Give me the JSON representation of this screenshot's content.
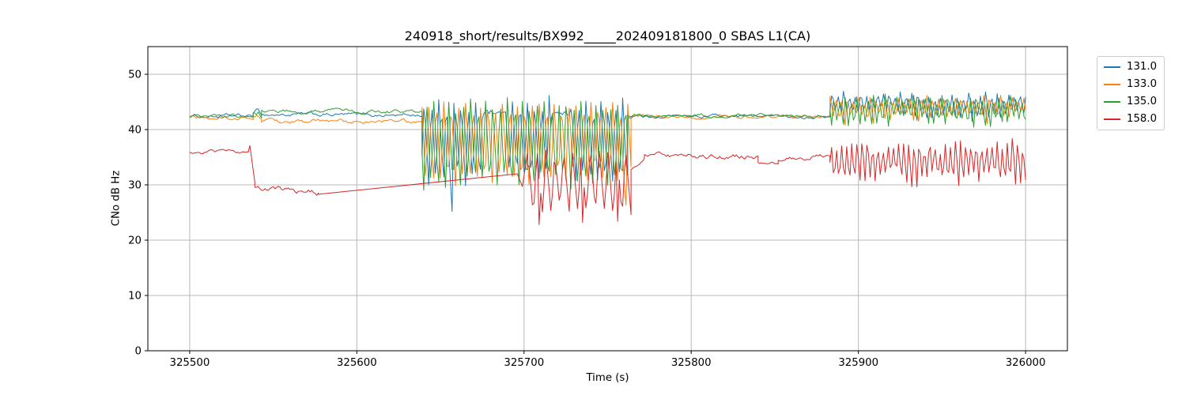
{
  "chart_data": {
    "type": "line",
    "title": "240918_short/results/BX992_____202409181800_0 SBAS L1(CA)",
    "xlabel": "Time (s)",
    "ylabel": "CNo dB Hz",
    "xlim": [
      325475,
      326025
    ],
    "ylim": [
      0,
      55
    ],
    "x_ticks": [
      325500,
      325600,
      325700,
      325800,
      325900,
      326000
    ],
    "y_ticks": [
      0,
      10,
      20,
      30,
      40,
      50
    ],
    "grid": true,
    "grid_color": "#b8b8b8",
    "spine_color": "#000000",
    "legend_position": "outside-upper-right",
    "series": [
      {
        "name": "131.0",
        "color": "#1f77b4",
        "segments": [
          {
            "type": "noise",
            "t0": 325500,
            "t1": 325538,
            "v0": 42.4,
            "v1": 42.4,
            "amp": 0.55
          },
          {
            "type": "noise",
            "t0": 325538,
            "t1": 325543,
            "v0": 42.8,
            "v1": 42.8,
            "amp": 1.1
          },
          {
            "type": "noise",
            "t0": 325543,
            "t1": 325639,
            "v0": 42.7,
            "v1": 42.6,
            "amp": 0.55
          },
          {
            "type": "saw",
            "t0": 325639,
            "t1": 325762,
            "hi": 45.6,
            "lo": 30.2,
            "period": 4.4,
            "phase": 0.1,
            "noise": 0.7,
            "holds": [
              [
                325676,
                325689,
                43.2
              ],
              [
                325717,
                325727,
                43.0
              ]
            ],
            "dips": [
              [
                325657,
                25.2
              ]
            ]
          },
          {
            "type": "noise",
            "t0": 325762,
            "t1": 325883,
            "v0": 42.4,
            "v1": 42.4,
            "amp": 0.45
          },
          {
            "type": "saw",
            "t0": 325883,
            "t1": 326000,
            "hi": 46.6,
            "lo": 42.6,
            "period": 3.4,
            "phase": 0.0,
            "noise": 0.5
          }
        ]
      },
      {
        "name": "133.0",
        "color": "#ff7f0e",
        "segments": [
          {
            "type": "noise",
            "t0": 325500,
            "t1": 325538,
            "v0": 42.1,
            "v1": 42.0,
            "amp": 0.55
          },
          {
            "type": "noise",
            "t0": 325538,
            "t1": 325543,
            "v0": 42.2,
            "v1": 42.2,
            "amp": 1.2
          },
          {
            "type": "noise",
            "t0": 325543,
            "t1": 325639,
            "v0": 41.5,
            "v1": 41.4,
            "amp": 0.6
          },
          {
            "type": "saw",
            "t0": 325639,
            "t1": 325764,
            "hi": 45.4,
            "lo": 30.0,
            "period": 4.4,
            "phase": 0.45,
            "noise": 0.7,
            "dips": [
              [
                325761,
                26.3
              ]
            ]
          },
          {
            "type": "noise",
            "t0": 325764,
            "t1": 325883,
            "v0": 42.3,
            "v1": 42.3,
            "amp": 0.45
          },
          {
            "type": "saw",
            "t0": 325883,
            "t1": 326000,
            "hi": 45.9,
            "lo": 41.9,
            "period": 3.4,
            "phase": 0.35,
            "noise": 0.5
          }
        ]
      },
      {
        "name": "135.0",
        "color": "#2ca02c",
        "segments": [
          {
            "type": "noise",
            "t0": 325500,
            "t1": 325538,
            "v0": 42.3,
            "v1": 42.3,
            "amp": 0.55
          },
          {
            "type": "noise",
            "t0": 325538,
            "t1": 325543,
            "v0": 43.0,
            "v1": 43.0,
            "amp": 1.5
          },
          {
            "type": "noise",
            "t0": 325543,
            "t1": 325639,
            "v0": 43.4,
            "v1": 43.2,
            "amp": 0.55
          },
          {
            "type": "saw",
            "t0": 325639,
            "t1": 325762,
            "hi": 45.8,
            "lo": 29.4,
            "period": 4.4,
            "phase": 0.78,
            "noise": 0.7
          },
          {
            "type": "noise",
            "t0": 325762,
            "t1": 325883,
            "v0": 42.6,
            "v1": 42.5,
            "amp": 0.5
          },
          {
            "type": "saw",
            "t0": 325883,
            "t1": 326000,
            "hi": 46.1,
            "lo": 41.0,
            "period": 3.4,
            "phase": 0.7,
            "noise": 0.5
          }
        ]
      },
      {
        "name": "158.0",
        "color": "#d62728",
        "segments": [
          {
            "type": "noise",
            "t0": 325500,
            "t1": 325535,
            "v0": 36.1,
            "v1": 35.8,
            "amp": 0.5
          },
          {
            "type": "line",
            "t0": 325535,
            "t1": 325536,
            "v0": 35.9,
            "v1": 37.1
          },
          {
            "type": "line",
            "t0": 325536,
            "t1": 325539,
            "v0": 37.1,
            "v1": 30.5
          },
          {
            "type": "noise",
            "t0": 325539,
            "t1": 325577,
            "v0": 29.7,
            "v1": 28.5,
            "amp": 0.8
          },
          {
            "type": "line",
            "t0": 325577,
            "t1": 325696,
            "v0": 28.3,
            "v1": 32.0
          },
          {
            "type": "line",
            "t0": 325696,
            "t1": 325699,
            "v0": 32.0,
            "v1": 29.7
          },
          {
            "type": "line",
            "t0": 325699,
            "t1": 325702,
            "v0": 29.7,
            "v1": 35.6
          },
          {
            "type": "saw",
            "t0": 325702,
            "t1": 325764,
            "hi": 36.3,
            "lo": 25.2,
            "period": 5.3,
            "phase": 0.3,
            "noise": 1.1,
            "dips": [
              [
                325709,
                22.8
              ],
              [
                325735,
                23.2
              ],
              [
                325756,
                23.4
              ]
            ]
          },
          {
            "type": "noise",
            "t0": 325764,
            "t1": 325772,
            "v0": 32.8,
            "v1": 34.9,
            "amp": 0.5
          },
          {
            "type": "noise",
            "t0": 325772,
            "t1": 325840,
            "v0": 35.2,
            "v1": 35.2,
            "amp": 0.75
          },
          {
            "type": "noise",
            "t0": 325840,
            "t1": 325852,
            "v0": 33.9,
            "v1": 33.9,
            "amp": 0.55
          },
          {
            "type": "noise",
            "t0": 325852,
            "t1": 325883,
            "v0": 34.4,
            "v1": 35.4,
            "amp": 0.7
          },
          {
            "type": "saw",
            "t0": 325883,
            "t1": 326000,
            "hi": 37.9,
            "lo": 30.5,
            "period": 3.1,
            "phase": 0.2,
            "noise": 0.9
          }
        ]
      }
    ]
  }
}
